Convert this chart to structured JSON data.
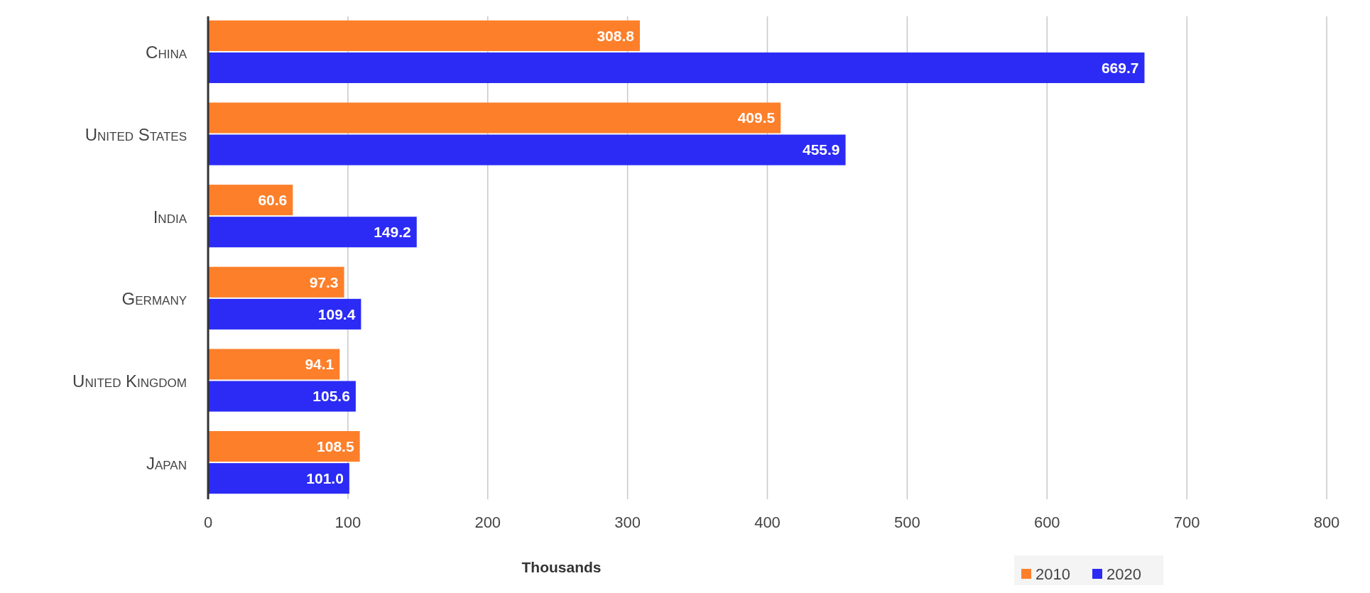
{
  "chart_data": {
    "type": "bar",
    "orientation": "horizontal",
    "categories": [
      "China",
      "United States",
      "India",
      "Germany",
      "United Kingdom",
      "Japan"
    ],
    "series": [
      {
        "name": "2010",
        "color": "#fd7f2a",
        "values": [
          308.8,
          409.5,
          60.6,
          97.3,
          94.1,
          108.5
        ],
        "value_labels": [
          "308.8",
          "409.5",
          "60.6",
          "97.3",
          "94.1",
          "108.5"
        ]
      },
      {
        "name": "2020",
        "color": "#2b2bf5",
        "values": [
          669.7,
          455.9,
          149.2,
          109.4,
          105.6,
          101.0
        ],
        "value_labels": [
          "669.7",
          "455.9",
          "149.2",
          "109.4",
          "105.6",
          "101.0"
        ]
      }
    ],
    "xlim": [
      0,
      800
    ],
    "xticks": [
      0,
      100,
      200,
      300,
      400,
      500,
      600,
      700,
      800
    ],
    "xlabel": "Thousands",
    "grid": "x",
    "legend": "bottom"
  }
}
